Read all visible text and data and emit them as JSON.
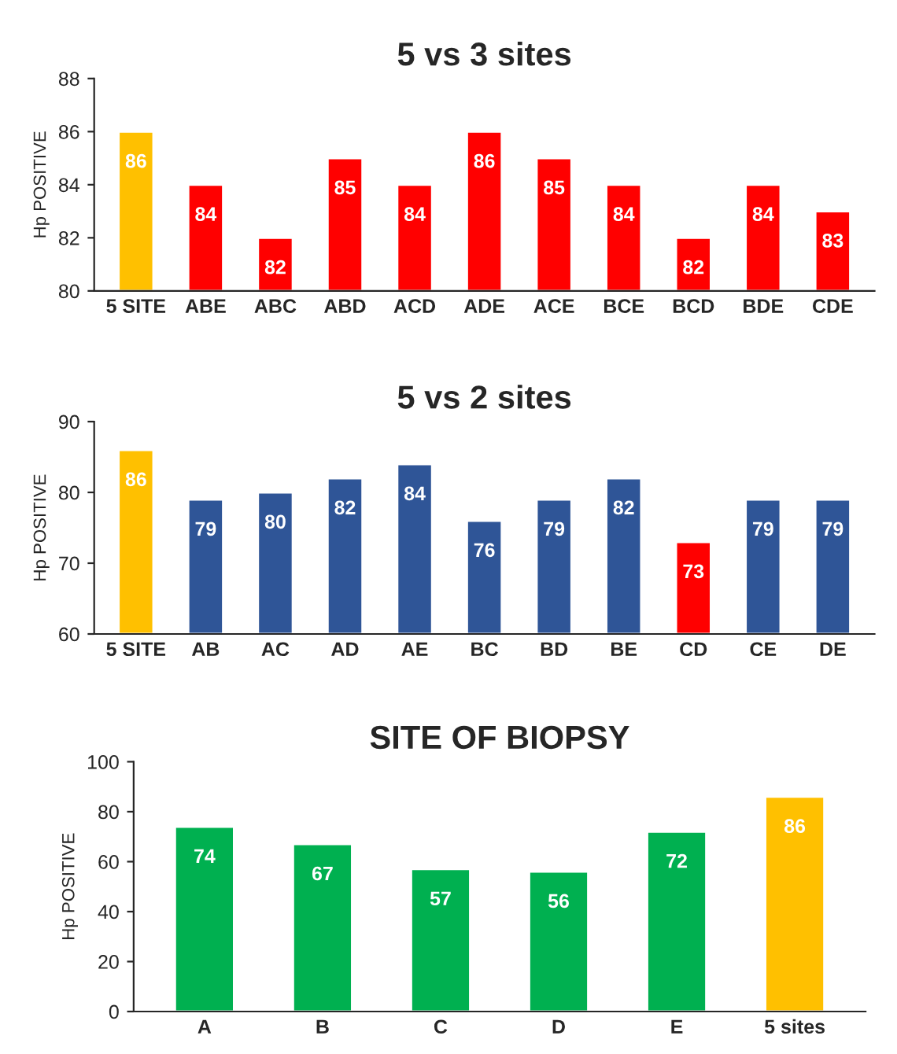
{
  "chart_data": [
    {
      "type": "bar",
      "title": "5 vs 3 sites",
      "ylabel": "Hp POSITIVE",
      "categories": [
        "5 SITE",
        "ABE",
        "ABC",
        "ABD",
        "ACD",
        "ADE",
        "ACE",
        "BCE",
        "BCD",
        "BDE",
        "CDE"
      ],
      "values": [
        86,
        84,
        82,
        85,
        84,
        86,
        85,
        84,
        82,
        84,
        83
      ],
      "colors": [
        "#ffc000",
        "#ff0000",
        "#ff0000",
        "#ff0000",
        "#ff0000",
        "#ff0000",
        "#ff0000",
        "#ff0000",
        "#ff0000",
        "#ff0000",
        "#ff0000"
      ],
      "ylim": [
        80,
        88
      ],
      "yticks": [
        80,
        82,
        84,
        86,
        88
      ],
      "data_labels": true,
      "grid": false,
      "legend": false
    },
    {
      "type": "bar",
      "title": "5 vs 2 sites",
      "ylabel": "Hp POSITIVE",
      "categories": [
        "5 SITE",
        "AB",
        "AC",
        "AD",
        "AE",
        "BC",
        "BD",
        "BE",
        "CD",
        "CE",
        "DE"
      ],
      "values": [
        86,
        79,
        80,
        82,
        84,
        76,
        79,
        82,
        73,
        79,
        79
      ],
      "colors": [
        "#ffc000",
        "#2f5597",
        "#2f5597",
        "#2f5597",
        "#2f5597",
        "#2f5597",
        "#2f5597",
        "#2f5597",
        "#ff0000",
        "#2f5597",
        "#2f5597"
      ],
      "ylim": [
        60,
        90
      ],
      "yticks": [
        60,
        70,
        80,
        90
      ],
      "data_labels": true,
      "grid": false,
      "legend": false
    },
    {
      "type": "bar",
      "title": "SITE OF BIOPSY",
      "ylabel": "Hp POSITIVE",
      "categories": [
        "A",
        "B",
        "C",
        "D",
        "E",
        "5 sites"
      ],
      "values": [
        74,
        67,
        57,
        56,
        72,
        86
      ],
      "colors": [
        "#00b050",
        "#00b050",
        "#00b050",
        "#00b050",
        "#00b050",
        "#ffc000"
      ],
      "ylim": [
        0,
        100
      ],
      "yticks": [
        0,
        20,
        40,
        60,
        80,
        100
      ],
      "data_labels": true,
      "grid": false,
      "legend": false
    }
  ]
}
